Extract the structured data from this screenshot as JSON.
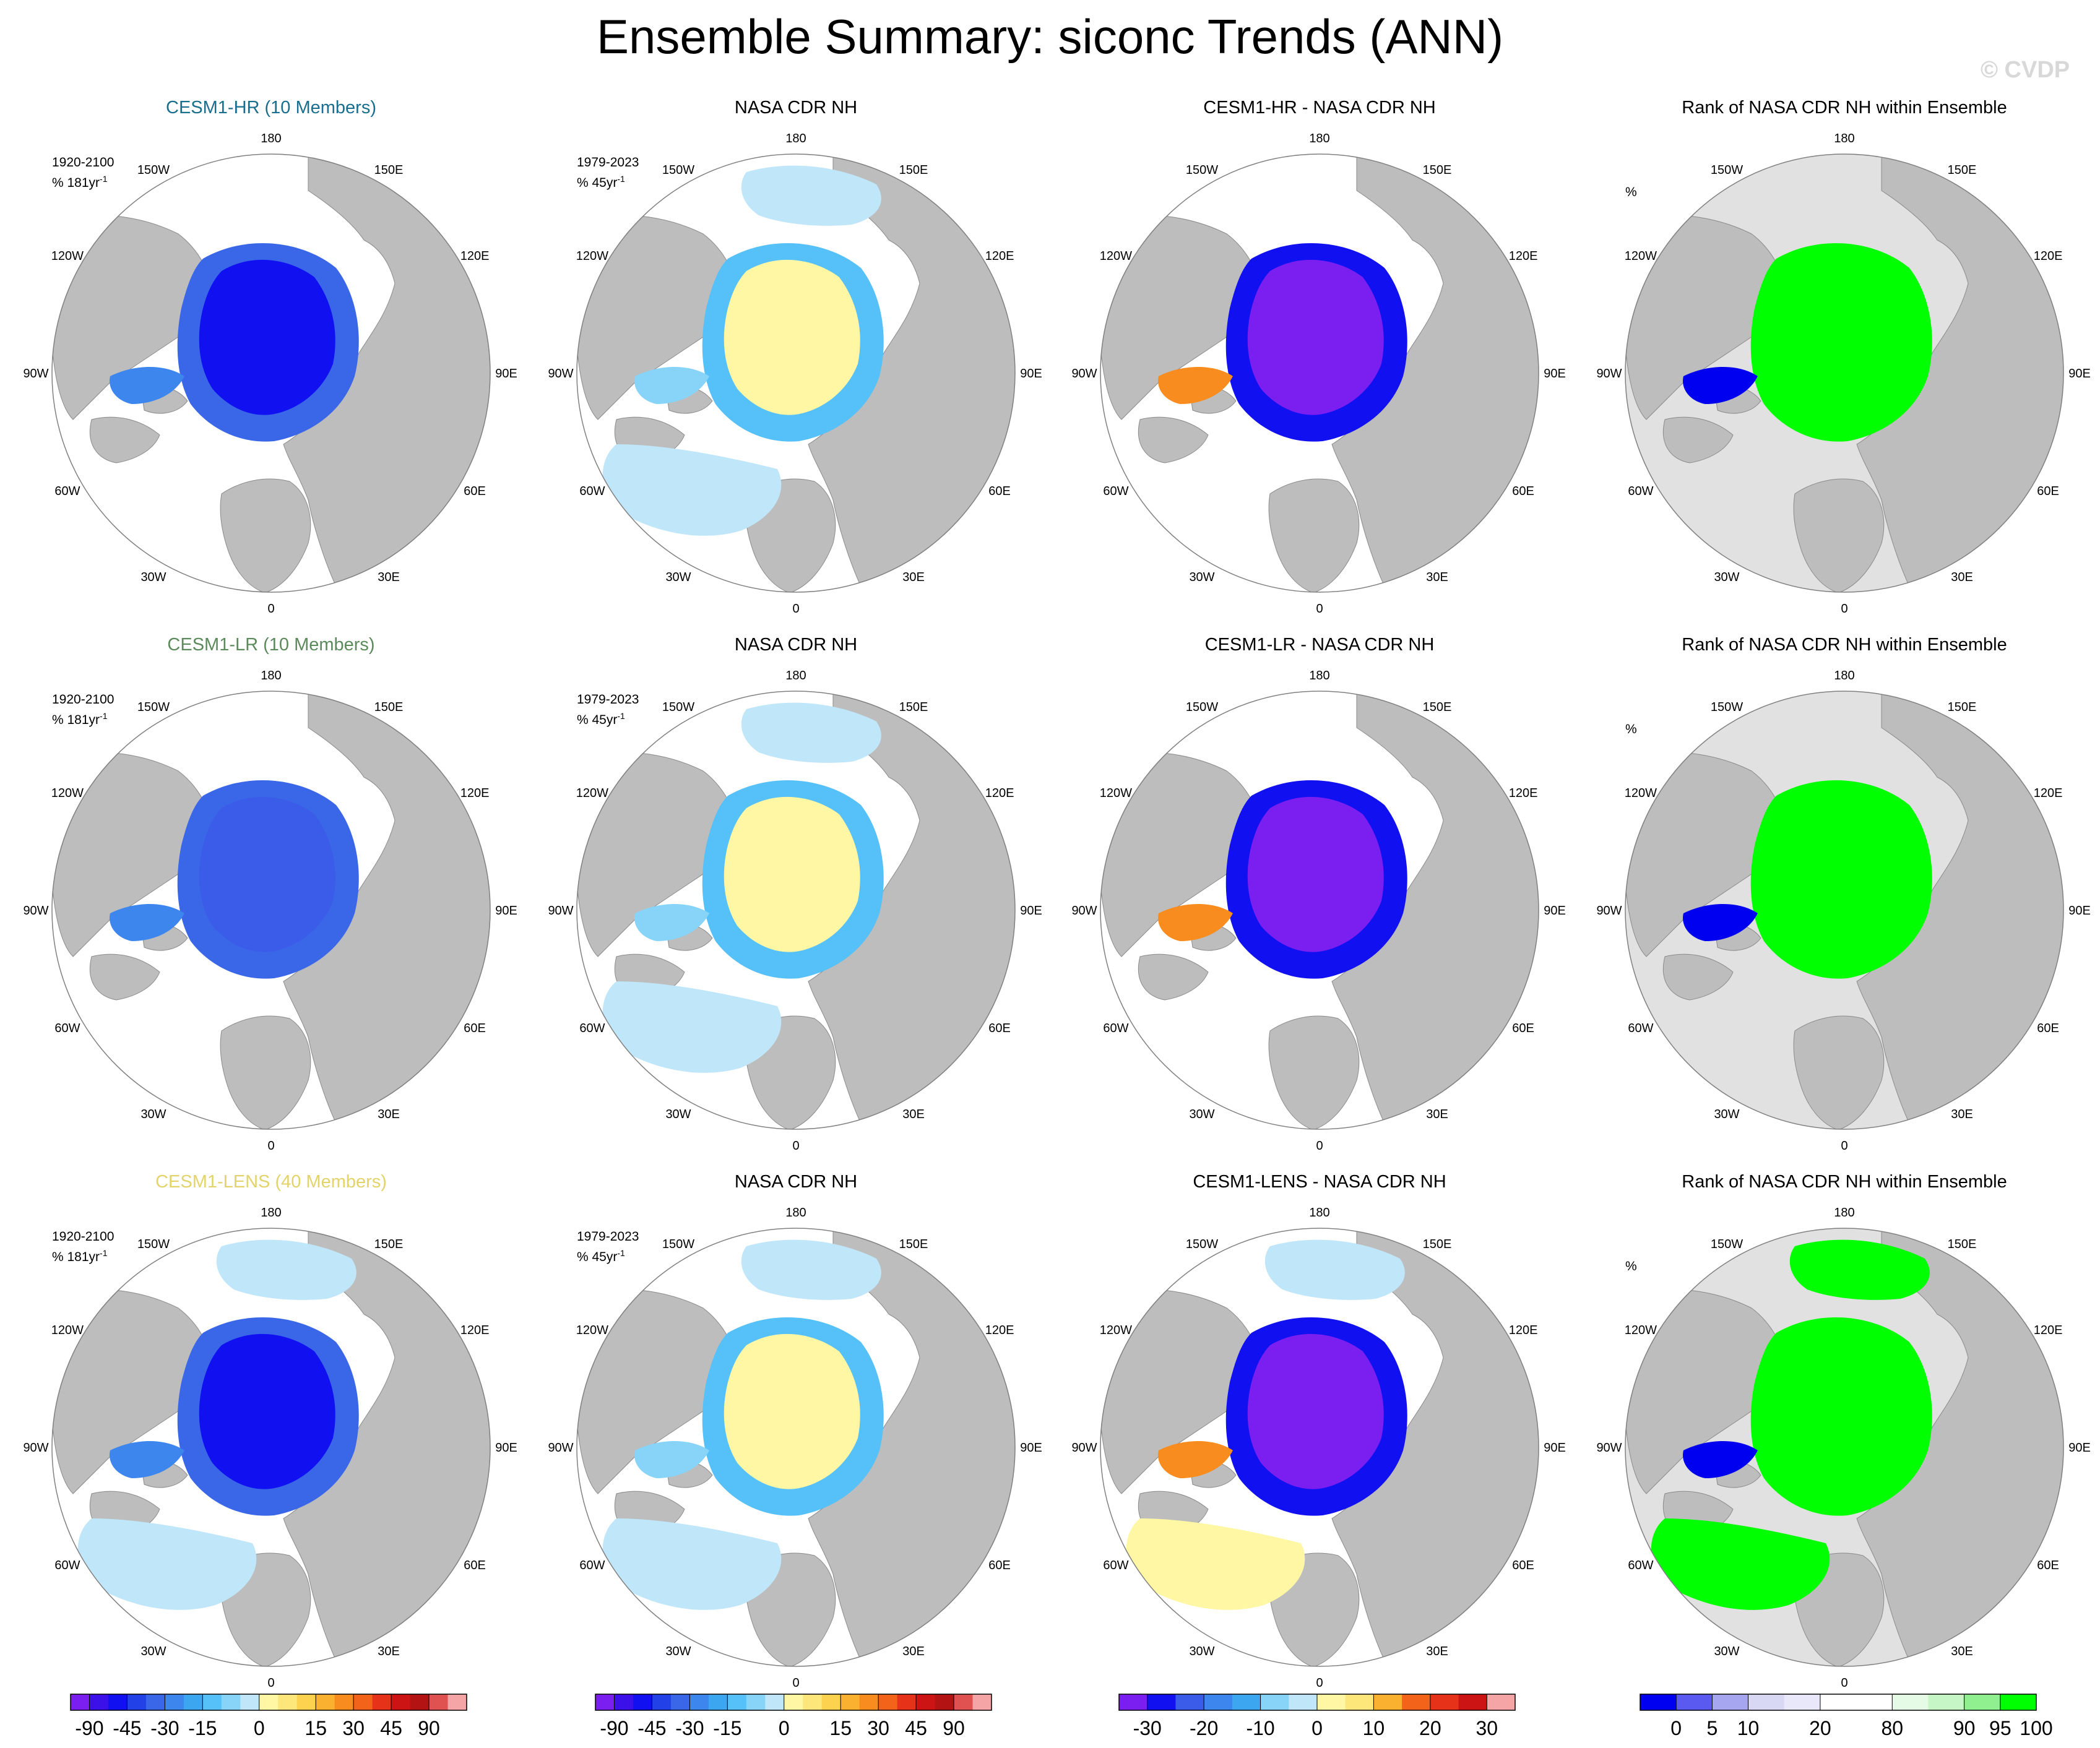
{
  "title": "Ensemble Summary: siconc Trends (ANN)",
  "watermark": "© CVDP",
  "colors": {
    "land": "#bdbdbd",
    "ocean": "#ffffff",
    "rank_background": "#e1e1e1",
    "hr_title": "#1a6e8e",
    "lr_title": "#5b8a5b",
    "lens_title": "#e3d36b"
  },
  "lon_labels": [
    "180",
    "150E",
    "120E",
    "90E",
    "60E",
    "30E",
    "0",
    "30W",
    "60W",
    "90W",
    "120W",
    "150W"
  ],
  "rows": [
    {
      "panels": [
        {
          "title": "CESM1-HR (10 Members)",
          "title_color": "#1a6e8e",
          "period": "1920-2100",
          "unit": "% 181yr",
          "unit_sup": "-1",
          "kind": "model",
          "fill": "#1010f0"
        },
        {
          "title": "NASA CDR NH",
          "title_color": "#000000",
          "period": "1979-2023",
          "unit": "% 45yr",
          "unit_sup": "-1",
          "kind": "obs",
          "fill": "#9dd7f7"
        },
        {
          "title": "CESM1-HR - NASA CDR NH",
          "title_color": "#000000",
          "period": "",
          "unit": "",
          "unit_sup": "",
          "kind": "diff",
          "fill": "#7b1ef0"
        },
        {
          "title": "Rank of NASA CDR NH within Ensemble",
          "title_color": "#000000",
          "period": "",
          "unit": "%",
          "unit_sup": "",
          "kind": "rank",
          "fill": "#00ff00"
        }
      ]
    },
    {
      "panels": [
        {
          "title": "CESM1-LR (10 Members)",
          "title_color": "#5b8a5b",
          "period": "1920-2100",
          "unit": "% 181yr",
          "unit_sup": "-1",
          "kind": "model",
          "fill": "#3a5ce8"
        },
        {
          "title": "NASA CDR NH",
          "title_color": "#000000",
          "period": "1979-2023",
          "unit": "% 45yr",
          "unit_sup": "-1",
          "kind": "obs",
          "fill": "#9dd7f7"
        },
        {
          "title": "CESM1-LR - NASA CDR NH",
          "title_color": "#000000",
          "period": "",
          "unit": "",
          "unit_sup": "",
          "kind": "diff",
          "fill": "#7b1ef0"
        },
        {
          "title": "Rank of NASA CDR NH within Ensemble",
          "title_color": "#000000",
          "period": "",
          "unit": "%",
          "unit_sup": "",
          "kind": "rank",
          "fill": "#00ff00"
        }
      ]
    },
    {
      "panels": [
        {
          "title": "CESM1-LENS (40 Members)",
          "title_color": "#e3d36b",
          "period": "1920-2100",
          "unit": "% 181yr",
          "unit_sup": "-1",
          "kind": "model",
          "fill": "#1010f0"
        },
        {
          "title": "NASA CDR NH",
          "title_color": "#000000",
          "period": "1979-2023",
          "unit": "% 45yr",
          "unit_sup": "-1",
          "kind": "obs",
          "fill": "#9dd7f7"
        },
        {
          "title": "CESM1-LENS - NASA CDR NH",
          "title_color": "#000000",
          "period": "",
          "unit": "",
          "unit_sup": "",
          "kind": "diff",
          "fill": "#7b1ef0"
        },
        {
          "title": "Rank of NASA CDR NH within Ensemble",
          "title_color": "#000000",
          "period": "",
          "unit": "%",
          "unit_sup": "",
          "kind": "rank",
          "fill": "#00ff00"
        }
      ]
    }
  ],
  "colorbars": [
    {
      "name": "trend-colorbar-model",
      "colors": [
        "#7b1ef0",
        "#3c10e8",
        "#1010f0",
        "#2242e8",
        "#3a66e8",
        "#3c86ee",
        "#3ca6f0",
        "#56c0f8",
        "#88d4f8",
        "#bfe6f9",
        "#fff7a3",
        "#fde77a",
        "#fdd24f",
        "#fbb130",
        "#f88c1e",
        "#f3631a",
        "#e63219",
        "#cd1414",
        "#b31313",
        "#e05252",
        "#f5a5a5"
      ],
      "labels": [
        "-90",
        "-45",
        "-30",
        "-15",
        "0",
        "15",
        "30",
        "45",
        "90"
      ],
      "label_positions": [
        1,
        3,
        5,
        7,
        10,
        13,
        15,
        17,
        19
      ]
    },
    {
      "name": "trend-colorbar-obs",
      "colors": [
        "#7b1ef0",
        "#3c10e8",
        "#1010f0",
        "#2242e8",
        "#3a66e8",
        "#3c86ee",
        "#3ca6f0",
        "#56c0f8",
        "#88d4f8",
        "#bfe6f9",
        "#fff7a3",
        "#fde77a",
        "#fdd24f",
        "#fbb130",
        "#f88c1e",
        "#f3631a",
        "#e63219",
        "#cd1414",
        "#b31313",
        "#e05252",
        "#f5a5a5"
      ],
      "labels": [
        "-90",
        "-45",
        "-30",
        "-15",
        "0",
        "15",
        "30",
        "45",
        "90"
      ],
      "label_positions": [
        1,
        3,
        5,
        7,
        10,
        13,
        15,
        17,
        19
      ]
    },
    {
      "name": "diff-colorbar",
      "colors": [
        "#7b1ef0",
        "#1010f0",
        "#3a5ce8",
        "#3c86ee",
        "#3ca6f0",
        "#88d4f8",
        "#bfe6f9",
        "#fff7a3",
        "#fde77a",
        "#fbb130",
        "#f3631a",
        "#e63219",
        "#cd1414",
        "#f5a5a5"
      ],
      "labels": [
        "-30",
        "-20",
        "-10",
        "0",
        "10",
        "20",
        "30"
      ],
      "label_positions": [
        1,
        3,
        5,
        7,
        9,
        11,
        13
      ]
    },
    {
      "name": "rank-colorbar",
      "colors": [
        "#0000f0",
        "#5a5af0",
        "#a6a6f0",
        "#d8d8f5",
        "#e8e8fa",
        "#ffffff",
        "#ffffff",
        "#e6fbe6",
        "#c6f5c6",
        "#90f090",
        "#00ff00"
      ],
      "labels": [
        "0",
        "5",
        "10",
        "20",
        "80",
        "90",
        "95",
        "100"
      ],
      "label_positions": [
        1,
        2,
        3,
        5,
        7,
        9,
        10,
        11
      ]
    }
  ]
}
